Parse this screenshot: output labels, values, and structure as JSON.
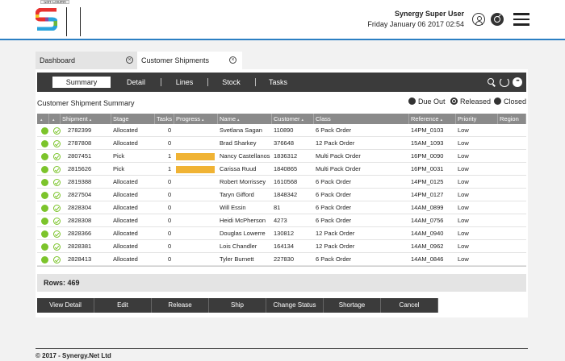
{
  "header": {
    "tooltip": "Sort Column",
    "user_name": "Synergy Super User",
    "date_time": "Friday January 06 2017 02:54",
    "colors": {
      "accent_line": "#2b7fc3"
    }
  },
  "tabs": [
    {
      "label": "Dashboard",
      "active": false
    },
    {
      "label": "Customer Shipments",
      "active": true
    }
  ],
  "subtabs": [
    "Summary",
    "Detail",
    "Lines",
    "Stock",
    "Tasks"
  ],
  "summary": {
    "title": "Customer Shipment Summary",
    "filters": [
      {
        "label": "Due Out",
        "selected": false
      },
      {
        "label": "Released",
        "selected": true
      },
      {
        "label": "Closed",
        "selected": false
      }
    ]
  },
  "table": {
    "columns": [
      "Shipment",
      "Stage",
      "Tasks",
      "Progress",
      "Name",
      "Customer",
      "Class",
      "Reference",
      "Priority",
      "Region"
    ],
    "rows": [
      {
        "shipment": "2782399",
        "stage": "Allocated",
        "tasks": "0",
        "progress": 0,
        "name": "Svetlana Sagan",
        "customer": "110890",
        "class": "6 Pack Order",
        "reference": "14PM_0103",
        "priority": "Low",
        "region": ""
      },
      {
        "shipment": "2787808",
        "stage": "Allocated",
        "tasks": "0",
        "progress": 0,
        "name": "Brad Sharkey",
        "customer": "376648",
        "class": "12 Pack Order",
        "reference": "15AM_1093",
        "priority": "Low",
        "region": ""
      },
      {
        "shipment": "2807451",
        "stage": "Pick",
        "tasks": "1",
        "progress": 1,
        "name": "Nancy Castellanos",
        "customer": "1836312",
        "class": "Multi Pack Order",
        "reference": "16PM_0090",
        "priority": "Low",
        "region": ""
      },
      {
        "shipment": "2815626",
        "stage": "Pick",
        "tasks": "1",
        "progress": 1,
        "name": "Carissa Ruud",
        "customer": "1840865",
        "class": "Multi Pack Order",
        "reference": "16PM_0031",
        "priority": "Low",
        "region": ""
      },
      {
        "shipment": "2819388",
        "stage": "Allocated",
        "tasks": "0",
        "progress": 0,
        "name": "Robert Morrissey",
        "customer": "1610568",
        "class": "6 Pack Order",
        "reference": "14PM_0125",
        "priority": "Low",
        "region": ""
      },
      {
        "shipment": "2827504",
        "stage": "Allocated",
        "tasks": "0",
        "progress": 0,
        "name": "Taryn Gifford",
        "customer": "1848342",
        "class": "6 Pack Order",
        "reference": "14PM_0127",
        "priority": "Low",
        "region": ""
      },
      {
        "shipment": "2828304",
        "stage": "Allocated",
        "tasks": "0",
        "progress": 0,
        "name": "Will Essin",
        "customer": "81",
        "class": "6 Pack Order",
        "reference": "14AM_0899",
        "priority": "Low",
        "region": ""
      },
      {
        "shipment": "2828308",
        "stage": "Allocated",
        "tasks": "0",
        "progress": 0,
        "name": "Heidi McPherson",
        "customer": "4273",
        "class": "6 Pack Order",
        "reference": "14AM_0756",
        "priority": "Low",
        "region": ""
      },
      {
        "shipment": "2828366",
        "stage": "Allocated",
        "tasks": "0",
        "progress": 0,
        "name": "Douglas Lowerre",
        "customer": "130812",
        "class": "12 Pack Order",
        "reference": "14AM_0940",
        "priority": "Low",
        "region": ""
      },
      {
        "shipment": "2828381",
        "stage": "Allocated",
        "tasks": "0",
        "progress": 0,
        "name": "Lois Chandler",
        "customer": "164134",
        "class": "12 Pack Order",
        "reference": "14AM_0962",
        "priority": "Low",
        "region": ""
      },
      {
        "shipment": "2828413",
        "stage": "Allocated",
        "tasks": "0",
        "progress": 0,
        "name": "Tyler Burnett",
        "customer": "227830",
        "class": "6 Pack Order",
        "reference": "14AM_0846",
        "priority": "Low",
        "region": ""
      }
    ],
    "colors": {
      "status_green": "#7cc42b",
      "progress_fill": "#f0b334"
    }
  },
  "rows_count": "Rows: 469",
  "actions": [
    "View Detail",
    "Edit",
    "Release",
    "Ship",
    "Change Status",
    "Shortage",
    "Cancel"
  ],
  "footer": "© 2017 - Synergy.Net Ltd"
}
